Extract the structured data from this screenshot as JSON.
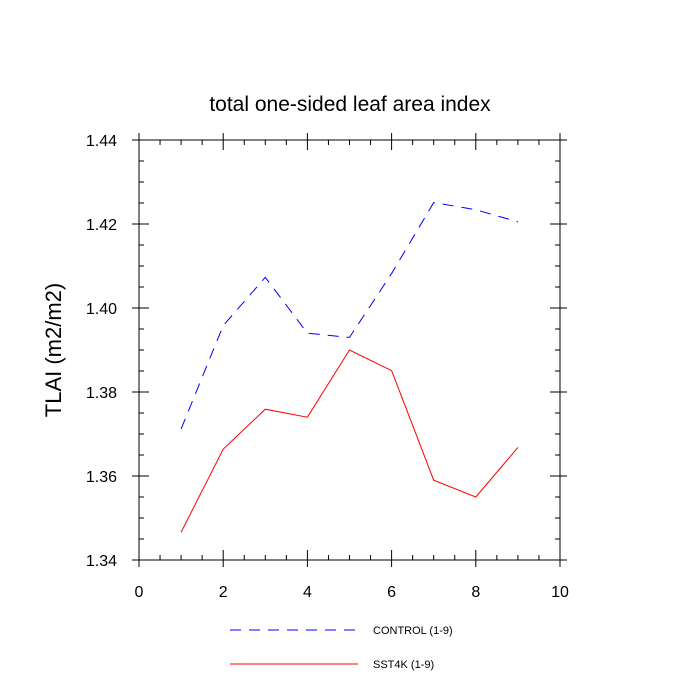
{
  "chart_data": {
    "type": "line",
    "title": "total one-sided leaf area index",
    "xlabel": "",
    "ylabel": "TLAI  (m2/m2)",
    "xlim": [
      0,
      10
    ],
    "ylim": [
      1.34,
      1.44
    ],
    "x_ticks": [
      "0",
      "2",
      "4",
      "6",
      "8",
      "10"
    ],
    "y_ticks": [
      "1.34",
      "1.36",
      "1.38",
      "1.40",
      "1.42",
      "1.44"
    ],
    "grid": false,
    "legend_position": "bottom",
    "x": [
      1,
      2,
      3,
      4,
      5,
      6,
      7,
      8,
      9
    ],
    "series": [
      {
        "name": "CONTROL (1-9)",
        "color": "#0000ff",
        "style": "dashed",
        "values": [
          1.3712,
          1.3958,
          1.4073,
          1.394,
          1.393,
          1.4082,
          1.4251,
          1.4234,
          1.4205
        ]
      },
      {
        "name": "SST4K (1-9)",
        "color": "#ff0000",
        "style": "solid",
        "values": [
          1.3466,
          1.3664,
          1.3759,
          1.374,
          1.39,
          1.3851,
          1.359,
          1.355,
          1.3668
        ]
      }
    ]
  }
}
